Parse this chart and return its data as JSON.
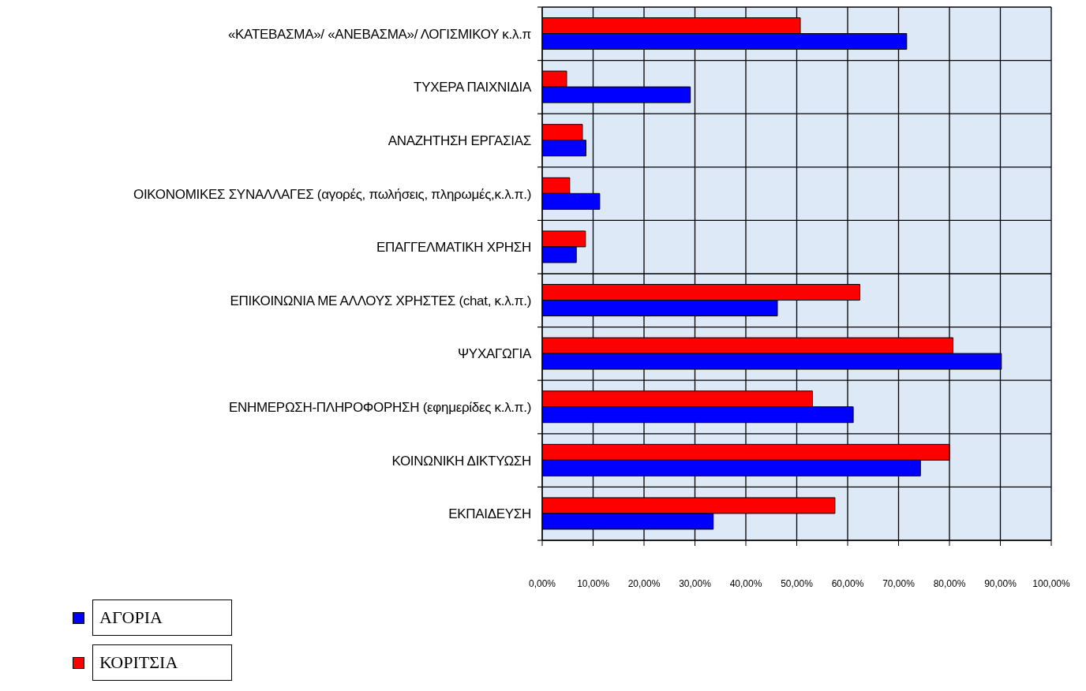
{
  "chart_data": {
    "type": "bar",
    "orientation": "horizontal",
    "categories": [
      "«ΚΑΤΕΒΑΣΜΑ»/ «ΑΝΕΒΑΣΜΑ»/ ΛΟΓΙΣΜΙΚΟΥ κ.λ.π",
      "ΤΥΧΕΡΑ ΠΑΙΧΝΙΔΙΑ",
      "ΑΝΑΖΗΤΗΣΗ ΕΡΓΑΣΙΑΣ",
      "ΟΙΚΟΝΟΜΙΚΕΣ ΣΥΝΑΛΛΑΓΕΣ (αγορές, πωλήσεις, πληρωμές,κ.λ.π.)",
      "ΕΠΑΓΓΕΛΜΑΤΙΚΗ ΧΡΗΣΗ",
      "ΕΠΙΚΟΙΝΩΝΙΑ ΜΕ ΑΛΛΟΥΣ ΧΡΗΣΤΕΣ (chat, κ.λ.π.)",
      "ΨΥΧΑΓΩΓΙΑ",
      "ΕΝΗΜΕΡΩΣΗ-ΠΛΗΡΟΦΟΡΗΣΗ (εφημερίδες κ.λ.π.)",
      "ΚΟΙΝΩΝΙΚΗ ΔΙΚΤΥΩΣΗ",
      "ΕΚΠΑΙΔΕΥΣΗ"
    ],
    "series": [
      {
        "name": "ΑΓΟΡΙΑ",
        "color": "#0000ff",
        "values": [
          71.6,
          29.1,
          8.6,
          11.3,
          6.7,
          46.2,
          90.2,
          61.1,
          74.3,
          33.6
        ]
      },
      {
        "name": "ΚΟΡΙΤΣΙΑ",
        "color": "#ff0000",
        "values": [
          50.7,
          4.8,
          7.9,
          5.4,
          8.5,
          62.4,
          80.7,
          53.1,
          80.0,
          57.5
        ]
      }
    ],
    "xlim": [
      0,
      100
    ],
    "xticks": [
      {
        "value": 0,
        "label": "0,00%"
      },
      {
        "value": 10,
        "label": "10,00%"
      },
      {
        "value": 20,
        "label": "20,00%"
      },
      {
        "value": 30,
        "label": "30,00%"
      },
      {
        "value": 40,
        "label": "40,00%"
      },
      {
        "value": 50,
        "label": "50,00%"
      },
      {
        "value": 60,
        "label": "60,00%"
      },
      {
        "value": 70,
        "label": "70,00%"
      },
      {
        "value": 80,
        "label": "80,00%"
      },
      {
        "value": 90,
        "label": "90,00%"
      },
      {
        "value": 100,
        "label": "100,00%"
      }
    ],
    "grid": true,
    "legend": "bottom left"
  }
}
